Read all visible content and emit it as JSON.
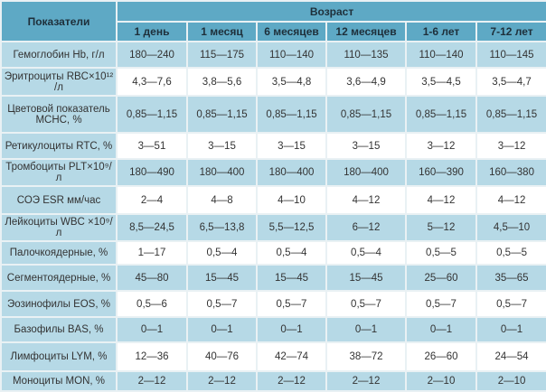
{
  "header": {
    "indicator": "Показатели",
    "age": "Возраст",
    "ages": [
      "1 день",
      "1 месяц",
      "6 месяцев",
      "12 месяцев",
      "1-6 лет",
      "7-12 лет"
    ]
  },
  "colors": {
    "header": "#5ea9c5",
    "shaded": "#b6d9e6",
    "plain": "#ffffff"
  },
  "rows": [
    {
      "label": "Гемоглобин Hb, г/л",
      "values": [
        "180—240",
        "115—175",
        "110—140",
        "110—135",
        "110—140",
        "110—145"
      ]
    },
    {
      "label": "Эритроциты RBC×10¹² /л",
      "values": [
        "4,3—7,6",
        "3,8—5,6",
        "3,5—4,8",
        "3,6—4,9",
        "3,5—4,5",
        "3,5—4,7"
      ]
    },
    {
      "label": "Цветовой показатель MCHC, %",
      "values": [
        "0,85—1,15",
        "0,85—1,15",
        "0,85—1,15",
        "0,85—1,15",
        "0,85—1,15",
        "0,85—1,15"
      ]
    },
    {
      "label": "Ретикулоциты RTC, %",
      "values": [
        "3—51",
        "3—15",
        "3—15",
        "3—15",
        "3—12",
        "3—12"
      ]
    },
    {
      "label": "Тромбоциты PLT×10⁹/л",
      "values": [
        "180—490",
        "180—400",
        "180—400",
        "180—400",
        "160—390",
        "160—380"
      ]
    },
    {
      "label": "СОЭ ESR мм/час",
      "values": [
        "2—4",
        "4—8",
        "4—10",
        "4—12",
        "4—12",
        "4—12"
      ]
    },
    {
      "label": "Лейкоциты WBC ×10⁹/л",
      "values": [
        "8,5—24,5",
        "6,5—13,8",
        "5,5—12,5",
        "6—12",
        "5—12",
        "4,5—10"
      ]
    },
    {
      "label": "Палочкоядерные, %",
      "values": [
        "1—17",
        "0,5—4",
        "0,5—4",
        "0,5—4",
        "0,5—5",
        "0,5—5"
      ]
    },
    {
      "label": "Сегментоядерные, %",
      "values": [
        "45—80",
        "15—45",
        "15—45",
        "15—45",
        "25—60",
        "35—65"
      ]
    },
    {
      "label": "Эозинофилы EOS, %",
      "values": [
        "0,5—6",
        "0,5—7",
        "0,5—7",
        "0,5—7",
        "0,5—7",
        "0,5—7"
      ]
    },
    {
      "label": "Базофилы BAS, %",
      "values": [
        "0—1",
        "0—1",
        "0—1",
        "0—1",
        "0—1",
        "0—1"
      ]
    },
    {
      "label": "Лимфоциты LYM, %",
      "values": [
        "12—36",
        "40—76",
        "42—74",
        "38—72",
        "26—60",
        "24—54"
      ]
    },
    {
      "label": "Моноциты MON, %",
      "values": [
        "2—12",
        "2—12",
        "2—12",
        "2—12",
        "2—10",
        "2—10"
      ]
    }
  ]
}
